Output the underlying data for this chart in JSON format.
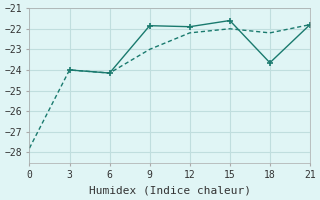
{
  "line1_x": [
    0,
    3,
    6,
    9,
    12,
    15,
    18,
    21
  ],
  "line1_y": [
    -27.8,
    -24.0,
    -24.15,
    -23.0,
    -22.2,
    -22.0,
    -22.2,
    -21.8
  ],
  "line2_x": [
    3,
    6,
    9,
    12,
    15,
    18,
    21
  ],
  "line2_y": [
    -24.0,
    -24.15,
    -21.85,
    -21.9,
    -21.6,
    -23.65,
    -21.8
  ],
  "color": "#1a7a6e",
  "bg_color": "#e0f5f5",
  "grid_color": "#c0dede",
  "xlabel": "Humidex (Indice chaleur)",
  "xlim": [
    0,
    21
  ],
  "ylim": [
    -28.5,
    -21.0
  ],
  "xticks": [
    0,
    3,
    6,
    9,
    12,
    15,
    18,
    21
  ],
  "yticks": [
    -28,
    -27,
    -26,
    -25,
    -24,
    -23,
    -22,
    -21
  ],
  "xlabel_fontsize": 8,
  "tick_fontsize": 7
}
